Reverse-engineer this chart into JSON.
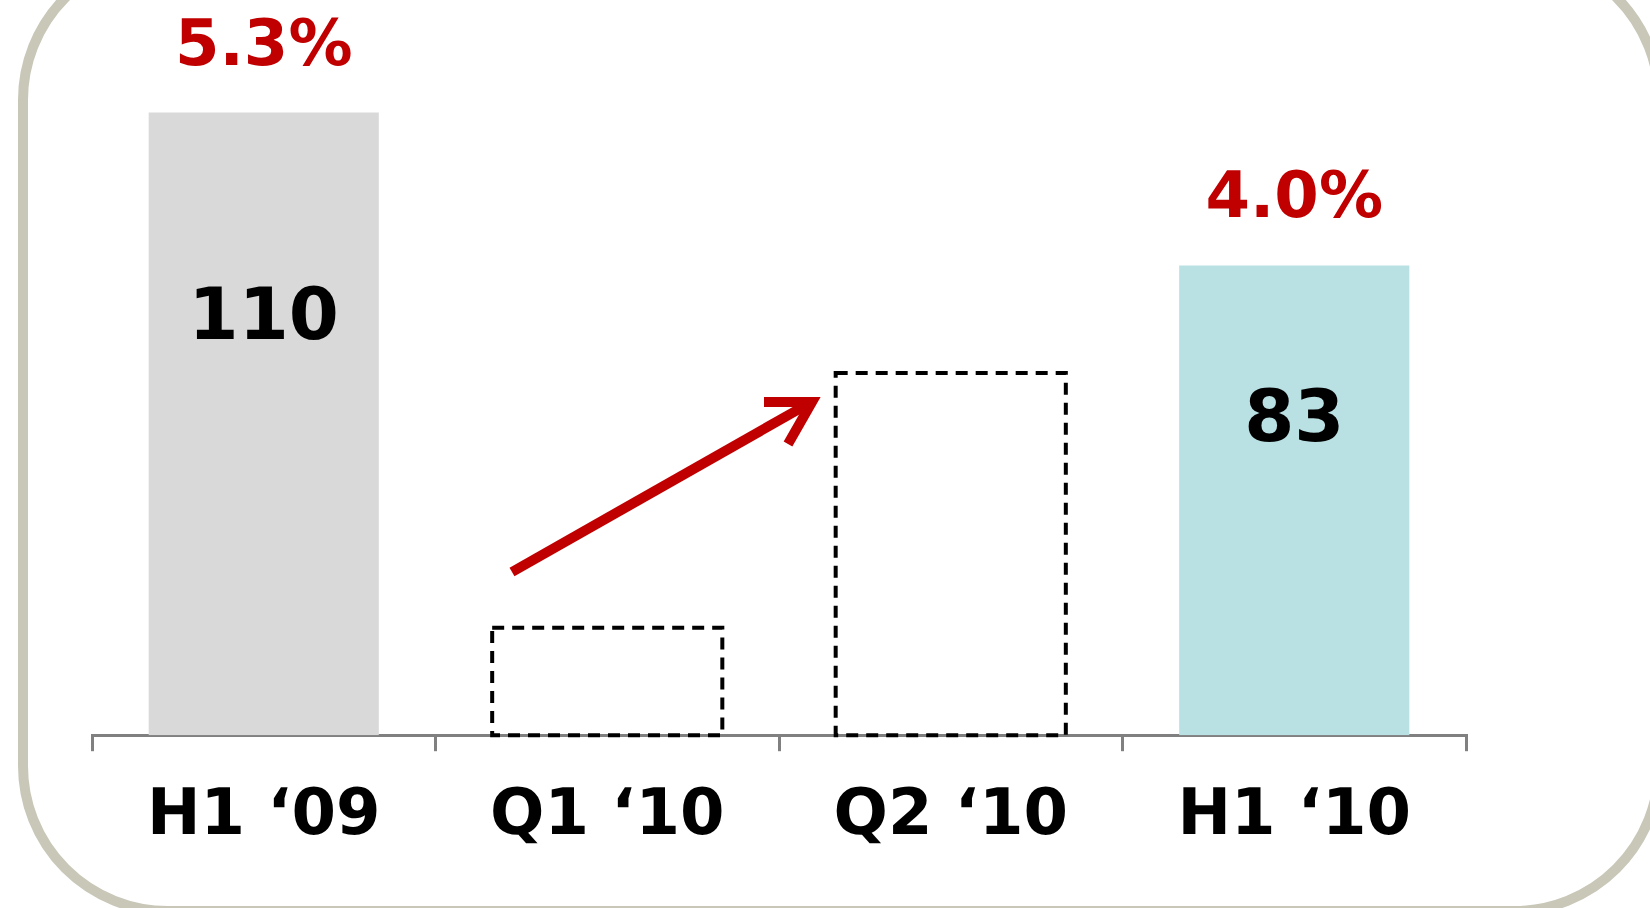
{
  "chart_data": {
    "type": "bar",
    "categories": [
      "H1 ‘09",
      "Q1 ‘10",
      "Q2 ‘10",
      "H1 ‘10"
    ],
    "series": [
      {
        "colors": [
          "#d9d9d9",
          null,
          null,
          "#b9e0e3"
        ],
        "values": [
          110,
          null,
          null,
          83
        ],
        "value_labels": [
          "110",
          null,
          null,
          "83"
        ]
      },
      {
        "color": "#000000",
        "line_style": "dashed",
        "values": [
          null,
          19,
          64,
          null
        ]
      }
    ],
    "annotations": [
      {
        "text": "5.3%",
        "x": "H1 ‘09",
        "y": 110
      },
      {
        "text": "4.0%",
        "x": "H1 ‘10",
        "y": 83
      }
    ]
  }
}
